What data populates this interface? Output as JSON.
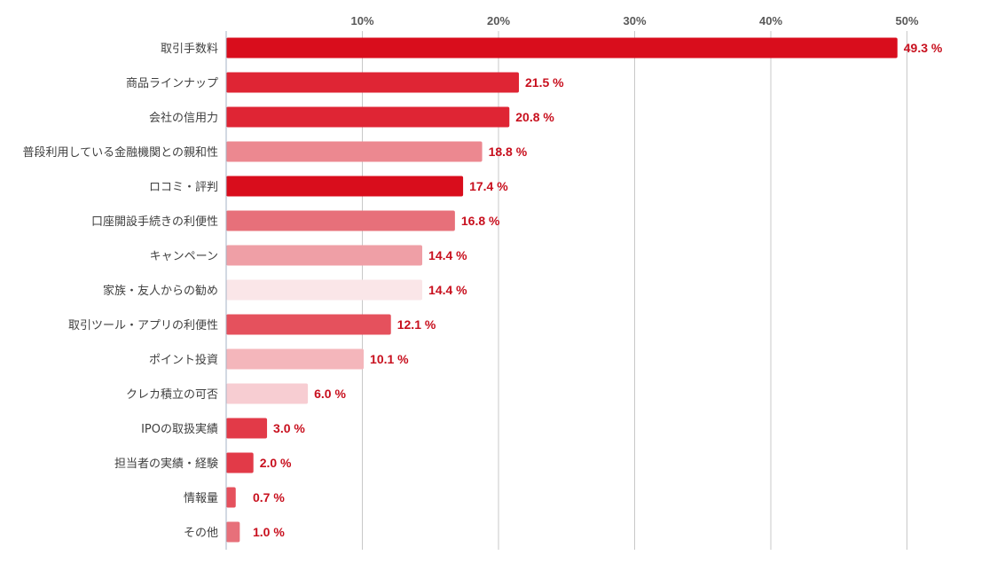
{
  "chart_data": {
    "type": "bar",
    "orientation": "horizontal",
    "xlim": [
      0,
      55
    ],
    "ticks": [
      {
        "value": 10,
        "label": "10%"
      },
      {
        "value": 20,
        "label": "20%"
      },
      {
        "value": 30,
        "label": "30%"
      },
      {
        "value": 40,
        "label": "40%"
      },
      {
        "value": 50,
        "label": "50%"
      }
    ],
    "grid": true,
    "categories": [
      "取引手数料",
      "商品ラインナップ",
      "会社の信用力",
      "普段利用している金融機関との親和性",
      "ロコミ・評判",
      "口座開設手続きの利便性",
      "キャンペーン",
      "家族・友人からの勧め",
      "取引ツール・アプリの利便性",
      "ポイント投資",
      "クレカ積立の可否",
      "IPOの取扱実績",
      "担当者の実績・経験",
      "情報量",
      "その他"
    ],
    "values": [
      49.3,
      21.5,
      20.8,
      18.8,
      17.4,
      16.8,
      14.4,
      14.4,
      12.1,
      10.1,
      6.0,
      3.0,
      2.0,
      0.7,
      1.0
    ],
    "value_labels": [
      "49.3 %",
      "21.5 %",
      "20.8 %",
      "18.8 %",
      "17.4 %",
      "16.8 %",
      "14.4 %",
      "14.4 %",
      "12.1 %",
      "10.1 %",
      "6.0 %",
      "3.0 %",
      "2.0 %",
      "0.7 %",
      "1.0 %"
    ],
    "bar_colors": [
      "#d90d1c",
      "#df2534",
      "#df2534",
      "#ec8890",
      "#d90d1c",
      "#e7707a",
      "#ef9fa6",
      "#fae6e8",
      "#e5515d",
      "#f4b6bb",
      "#f7cdd2",
      "#e23a48",
      "#e23a48",
      "#e5515d",
      "#e7707a"
    ],
    "value_label_color": "#c8101e",
    "gridline_color": "#c8c8c8"
  }
}
